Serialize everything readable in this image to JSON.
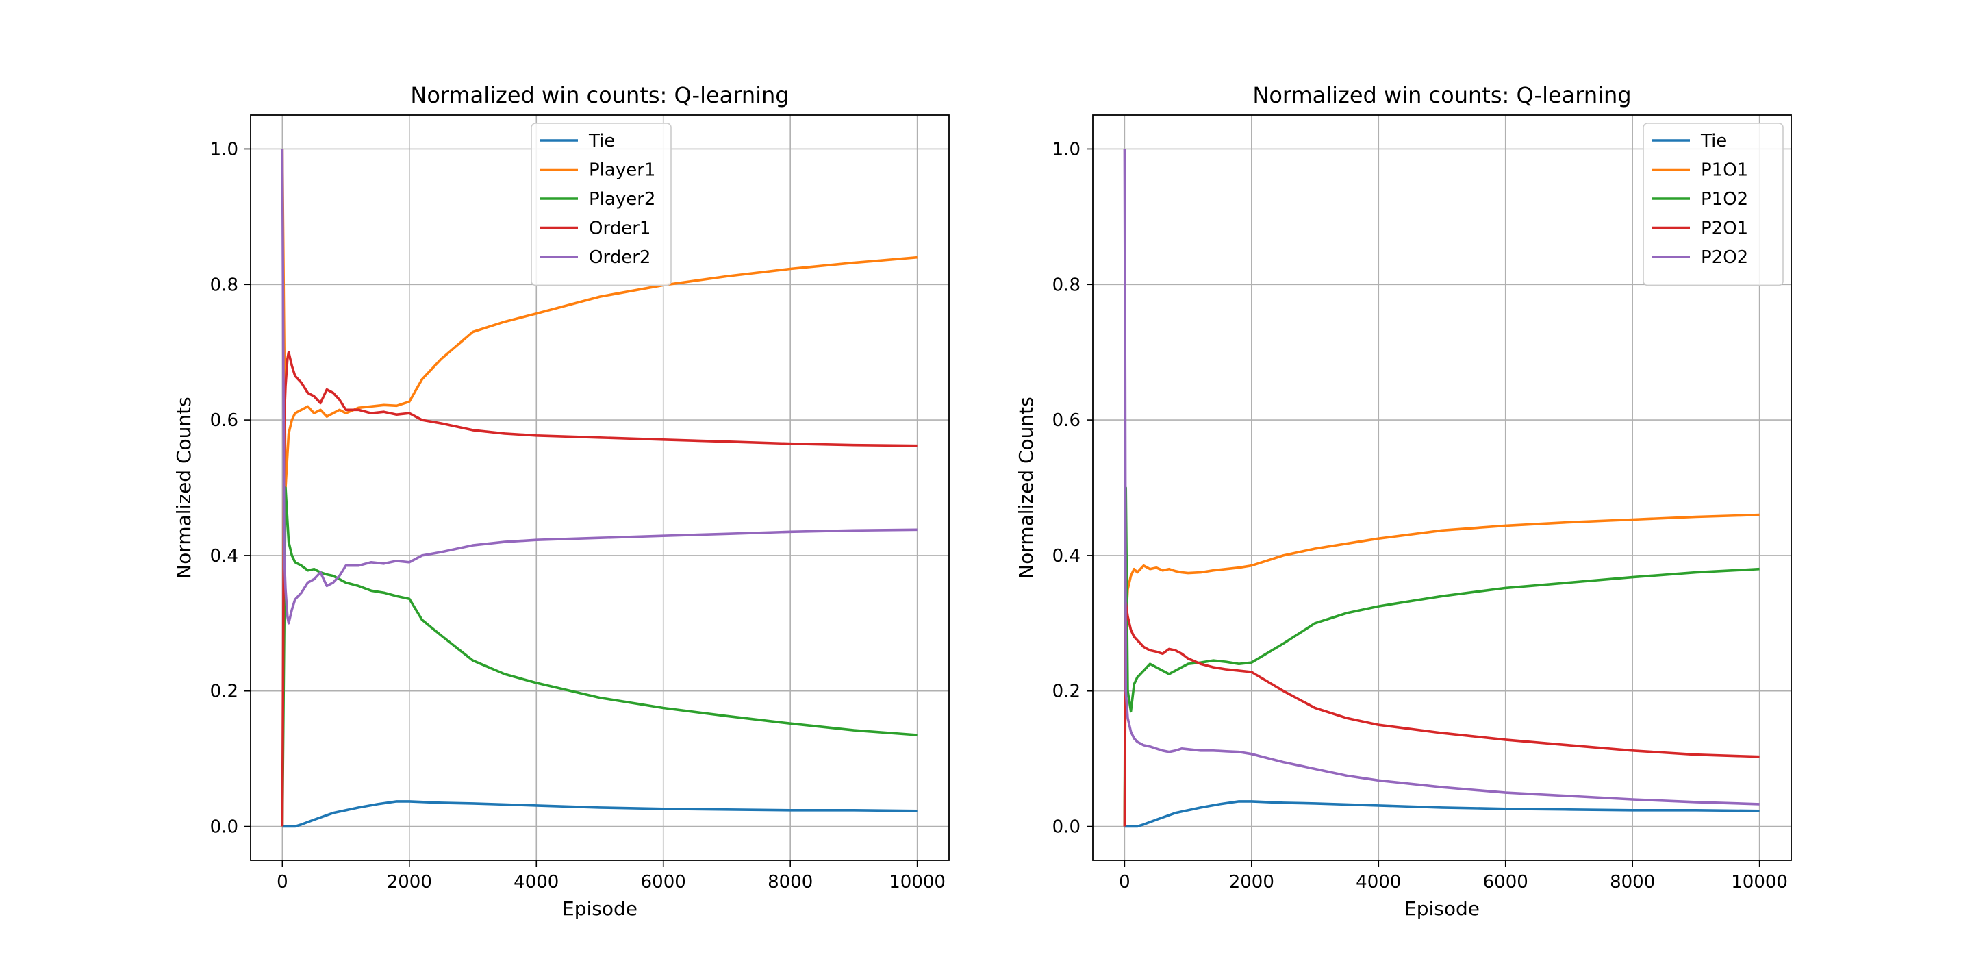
{
  "chart_data": [
    {
      "type": "line",
      "title": "Normalized win counts: Q-learning",
      "xlabel": "Episode",
      "ylabel": "Normalized Counts",
      "xlim": [
        -500,
        10500
      ],
      "ylim": [
        -0.05,
        1.05
      ],
      "xticks": [
        0,
        2000,
        4000,
        6000,
        8000,
        10000
      ],
      "yticks": [
        0.0,
        0.2,
        0.4,
        0.6,
        0.8,
        1.0
      ],
      "grid": true,
      "legend": "upper-center",
      "series": [
        {
          "name": "Tie",
          "color": "#1f77b4",
          "x": [
            0,
            100,
            200,
            300,
            500,
            800,
            1200,
            1500,
            1800,
            2000,
            2500,
            3000,
            4000,
            5000,
            6000,
            7000,
            8000,
            9000,
            10000
          ],
          "y": [
            0.0,
            0.0,
            0.0,
            0.003,
            0.01,
            0.02,
            0.028,
            0.033,
            0.037,
            0.037,
            0.035,
            0.034,
            0.031,
            0.028,
            0.026,
            0.025,
            0.024,
            0.024,
            0.023
          ]
        },
        {
          "name": "Player1",
          "color": "#ff7f0e",
          "x": [
            0,
            50,
            100,
            150,
            200,
            300,
            400,
            500,
            600,
            700,
            800,
            900,
            1000,
            1200,
            1400,
            1600,
            1800,
            2000,
            2200,
            2500,
            3000,
            3500,
            4000,
            5000,
            6000,
            7000,
            8000,
            9000,
            10000
          ],
          "y": [
            1.0,
            0.5,
            0.58,
            0.6,
            0.61,
            0.615,
            0.62,
            0.61,
            0.615,
            0.605,
            0.61,
            0.615,
            0.61,
            0.618,
            0.62,
            0.622,
            0.621,
            0.627,
            0.66,
            0.69,
            0.73,
            0.745,
            0.757,
            0.782,
            0.799,
            0.812,
            0.823,
            0.832,
            0.84
          ]
        },
        {
          "name": "Player2",
          "color": "#2ca02c",
          "x": [
            0,
            50,
            100,
            150,
            200,
            300,
            400,
            500,
            600,
            700,
            800,
            900,
            1000,
            1200,
            1400,
            1600,
            1800,
            2000,
            2200,
            2500,
            3000,
            3500,
            4000,
            5000,
            6000,
            7000,
            8000,
            9000,
            10000
          ],
          "y": [
            0.0,
            0.5,
            0.42,
            0.4,
            0.39,
            0.385,
            0.378,
            0.38,
            0.375,
            0.372,
            0.37,
            0.365,
            0.36,
            0.355,
            0.348,
            0.345,
            0.34,
            0.336,
            0.305,
            0.282,
            0.245,
            0.225,
            0.212,
            0.19,
            0.175,
            0.163,
            0.152,
            0.142,
            0.135
          ]
        },
        {
          "name": "Order1",
          "color": "#d62728",
          "x": [
            0,
            30,
            50,
            80,
            100,
            150,
            200,
            300,
            400,
            500,
            600,
            700,
            800,
            900,
            1000,
            1200,
            1400,
            1600,
            1800,
            2000,
            2200,
            2500,
            3000,
            3500,
            4000,
            5000,
            6000,
            7000,
            8000,
            9000,
            10000
          ],
          "y": [
            0.0,
            0.6,
            0.65,
            0.69,
            0.7,
            0.68,
            0.665,
            0.655,
            0.64,
            0.635,
            0.625,
            0.645,
            0.64,
            0.63,
            0.615,
            0.615,
            0.61,
            0.612,
            0.608,
            0.61,
            0.6,
            0.595,
            0.585,
            0.58,
            0.577,
            0.574,
            0.571,
            0.568,
            0.565,
            0.563,
            0.562
          ]
        },
        {
          "name": "Order2",
          "color": "#9467bd",
          "x": [
            0,
            30,
            50,
            80,
            100,
            150,
            200,
            300,
            400,
            500,
            600,
            700,
            800,
            900,
            1000,
            1200,
            1400,
            1600,
            1800,
            2000,
            2200,
            2500,
            3000,
            3500,
            4000,
            5000,
            6000,
            7000,
            8000,
            9000,
            10000
          ],
          "y": [
            1.0,
            0.4,
            0.35,
            0.31,
            0.3,
            0.32,
            0.335,
            0.345,
            0.36,
            0.365,
            0.375,
            0.355,
            0.36,
            0.37,
            0.385,
            0.385,
            0.39,
            0.388,
            0.392,
            0.39,
            0.4,
            0.405,
            0.415,
            0.42,
            0.423,
            0.426,
            0.429,
            0.432,
            0.435,
            0.437,
            0.438
          ]
        }
      ]
    },
    {
      "type": "line",
      "title": "Normalized win counts: Q-learning",
      "xlabel": "Episode",
      "ylabel": "Normalized Counts",
      "xlim": [
        -500,
        10500
      ],
      "ylim": [
        -0.05,
        1.05
      ],
      "xticks": [
        0,
        2000,
        4000,
        6000,
        8000,
        10000
      ],
      "yticks": [
        0.0,
        0.2,
        0.4,
        0.6,
        0.8,
        1.0
      ],
      "grid": true,
      "legend": "upper-right",
      "series": [
        {
          "name": "Tie",
          "color": "#1f77b4",
          "x": [
            0,
            100,
            200,
            300,
            500,
            800,
            1200,
            1500,
            1800,
            2000,
            2500,
            3000,
            4000,
            5000,
            6000,
            7000,
            8000,
            9000,
            10000
          ],
          "y": [
            0.0,
            0.0,
            0.0,
            0.003,
            0.01,
            0.02,
            0.028,
            0.033,
            0.037,
            0.037,
            0.035,
            0.034,
            0.031,
            0.028,
            0.026,
            0.025,
            0.024,
            0.024,
            0.023
          ]
        },
        {
          "name": "P1O1",
          "color": "#ff7f0e",
          "x": [
            0,
            20,
            50,
            100,
            150,
            200,
            300,
            400,
            500,
            600,
            700,
            800,
            900,
            1000,
            1200,
            1400,
            1600,
            1800,
            2000,
            2500,
            3000,
            4000,
            5000,
            6000,
            7000,
            8000,
            9000,
            10000
          ],
          "y": [
            0.0,
            0.3,
            0.35,
            0.37,
            0.38,
            0.375,
            0.385,
            0.38,
            0.382,
            0.378,
            0.38,
            0.377,
            0.375,
            0.374,
            0.375,
            0.378,
            0.38,
            0.382,
            0.385,
            0.4,
            0.41,
            0.425,
            0.437,
            0.444,
            0.449,
            0.453,
            0.457,
            0.46
          ]
        },
        {
          "name": "P1O2",
          "color": "#2ca02c",
          "x": [
            0,
            20,
            50,
            100,
            150,
            200,
            300,
            400,
            500,
            600,
            700,
            800,
            900,
            1000,
            1200,
            1400,
            1600,
            1800,
            2000,
            2500,
            3000,
            3500,
            4000,
            5000,
            6000,
            7000,
            8000,
            9000,
            10000
          ],
          "y": [
            0.0,
            0.5,
            0.2,
            0.17,
            0.21,
            0.22,
            0.23,
            0.24,
            0.235,
            0.23,
            0.225,
            0.23,
            0.235,
            0.24,
            0.242,
            0.245,
            0.243,
            0.24,
            0.242,
            0.27,
            0.3,
            0.315,
            0.325,
            0.34,
            0.352,
            0.36,
            0.368,
            0.375,
            0.38
          ]
        },
        {
          "name": "P2O1",
          "color": "#d62728",
          "x": [
            0,
            20,
            50,
            100,
            150,
            200,
            300,
            400,
            500,
            600,
            700,
            800,
            900,
            1000,
            1200,
            1400,
            1600,
            1800,
            2000,
            2500,
            3000,
            3500,
            4000,
            5000,
            6000,
            7000,
            8000,
            9000,
            10000
          ],
          "y": [
            0.0,
            0.33,
            0.31,
            0.29,
            0.28,
            0.275,
            0.265,
            0.26,
            0.258,
            0.255,
            0.262,
            0.26,
            0.255,
            0.248,
            0.24,
            0.235,
            0.232,
            0.23,
            0.228,
            0.2,
            0.175,
            0.16,
            0.15,
            0.138,
            0.128,
            0.12,
            0.112,
            0.106,
            0.103
          ]
        },
        {
          "name": "P2O2",
          "color": "#9467bd",
          "x": [
            0,
            10,
            20,
            50,
            100,
            150,
            200,
            300,
            400,
            500,
            600,
            700,
            800,
            900,
            1000,
            1200,
            1400,
            1600,
            1800,
            2000,
            2500,
            3000,
            3500,
            4000,
            5000,
            6000,
            7000,
            8000,
            9000,
            10000
          ],
          "y": [
            1.0,
            0.66,
            0.2,
            0.16,
            0.14,
            0.13,
            0.125,
            0.12,
            0.118,
            0.115,
            0.112,
            0.11,
            0.112,
            0.115,
            0.114,
            0.112,
            0.112,
            0.111,
            0.11,
            0.107,
            0.095,
            0.085,
            0.075,
            0.068,
            0.058,
            0.05,
            0.045,
            0.04,
            0.036,
            0.033
          ]
        }
      ]
    }
  ]
}
